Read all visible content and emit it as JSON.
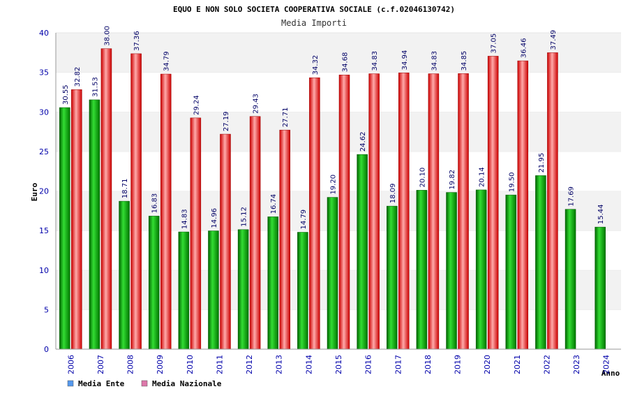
{
  "chart_data": {
    "type": "bar",
    "title": "EQUO E NON SOLO SOCIETA COOPERATIVA SOCIALE (c.f.02046130742)",
    "subtitle": "Media Importi",
    "xlabel": "Anno",
    "ylabel": "Euro",
    "ylim": [
      0,
      40
    ],
    "yticks": [
      0,
      5,
      10,
      15,
      20,
      25,
      30,
      35,
      40
    ],
    "grid": "horizontal bands",
    "legend_position": "bottom-left",
    "categories": [
      "2006",
      "2007",
      "2008",
      "2009",
      "2010",
      "2011",
      "2012",
      "2013",
      "2014",
      "2015",
      "2016",
      "2017",
      "2018",
      "2019",
      "2020",
      "2021",
      "2022",
      "2023",
      "2024"
    ],
    "series": [
      {
        "name": "Media Ente",
        "color": "#00a000",
        "legend_color": "#5599ee",
        "values": [
          30.55,
          31.53,
          18.71,
          16.83,
          14.83,
          14.96,
          15.12,
          16.74,
          14.79,
          19.2,
          24.62,
          18.09,
          20.1,
          19.82,
          20.14,
          19.5,
          21.95,
          17.69,
          15.44
        ],
        "labels": [
          "30.55",
          "31.53",
          "18.71",
          "16.83",
          "14.83",
          "14.96",
          "15.12",
          "16.74",
          "14.79",
          "19.20",
          "24.62",
          "18.09",
          "20.10",
          "19.82",
          "20.14",
          "19.50",
          "21.95",
          "17.69",
          "15.44"
        ]
      },
      {
        "name": "Media Nazionale",
        "color": "#e82020",
        "legend_color": "#dd77aa",
        "values": [
          32.82,
          38.0,
          37.36,
          34.79,
          29.24,
          27.19,
          29.43,
          27.71,
          34.32,
          34.68,
          34.83,
          34.94,
          34.83,
          34.85,
          37.05,
          36.46,
          37.49,
          null,
          null
        ],
        "labels": [
          "32.82",
          "38.00",
          "37.36",
          "34.79",
          "29.24",
          "27.19",
          "29.43",
          "27.71",
          "34.32",
          "34.68",
          "34.83",
          "34.94",
          "34.83",
          "34.85",
          "37.05",
          "36.46",
          "37.49",
          "",
          ""
        ]
      }
    ]
  }
}
